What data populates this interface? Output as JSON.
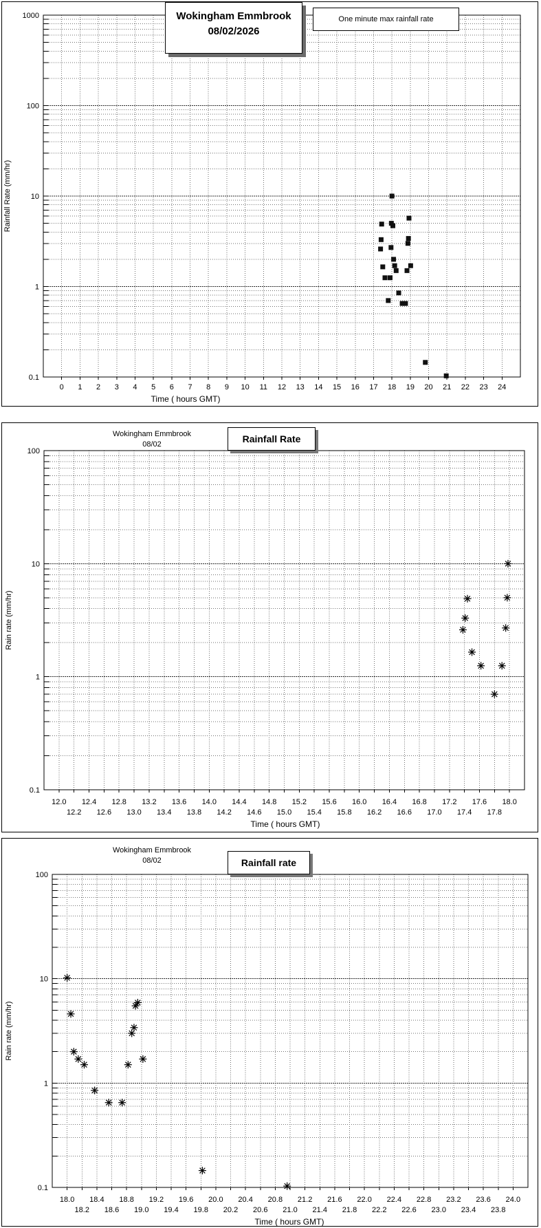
{
  "page": {
    "background": "#ffffff",
    "grid_color_minor": "#6e6e6e",
    "grid_color_major": "#2a2a2a",
    "marker_color": "#111111"
  },
  "chart_data": [
    {
      "type": "scatter",
      "header": {
        "line1": "Wokingham Emmbrook",
        "line2": "08/02/2026"
      },
      "legend": "One minute max rainfall rate",
      "marker": "square",
      "y_axis": {
        "title": "Rainfall Rate (mm/hr)",
        "scale": "log",
        "min": 0.1,
        "max": 1000,
        "tick_values": [
          1000,
          100,
          10,
          1,
          0.1
        ],
        "tick_labels": [
          "1000",
          "100",
          "10",
          "1",
          "0.1"
        ]
      },
      "x_axis": {
        "title": "Time ( hours GMT)",
        "min": -1,
        "max": 25,
        "grid_start": 0,
        "grid_step": 1,
        "grid_end": 24
      },
      "x_ticks": {
        "rows": [
          {
            "start": 0,
            "step": 1,
            "labels": [
              "0",
              "1",
              "2",
              "3",
              "4",
              "5",
              "6",
              "7",
              "8",
              "9",
              "10",
              "11",
              "12",
              "13",
              "14",
              "15",
              "16",
              "17",
              "18",
              "19",
              "20",
              "21",
              "22",
              "23",
              "24"
            ]
          }
        ]
      },
      "points": [
        [
          17.38,
          2.6
        ],
        [
          17.41,
          3.3
        ],
        [
          17.44,
          4.9
        ],
        [
          17.5,
          1.65
        ],
        [
          17.62,
          1.25
        ],
        [
          17.8,
          0.7
        ],
        [
          17.9,
          1.25
        ],
        [
          17.95,
          2.7
        ],
        [
          17.97,
          5.0
        ],
        [
          18.0,
          10.0
        ],
        [
          18.05,
          4.7
        ],
        [
          18.09,
          2.0
        ],
        [
          18.15,
          1.7
        ],
        [
          18.23,
          1.5
        ],
        [
          18.37,
          0.85
        ],
        [
          18.56,
          0.65
        ],
        [
          18.74,
          0.65
        ],
        [
          18.82,
          1.5
        ],
        [
          18.87,
          3.0
        ],
        [
          18.9,
          3.4
        ],
        [
          18.93,
          5.7
        ],
        [
          19.02,
          1.7
        ],
        [
          19.82,
          0.145
        ],
        [
          20.96,
          0.103
        ]
      ]
    },
    {
      "type": "scatter",
      "header": {
        "line1": "Wokingham Emmbrook",
        "line2": "08/02"
      },
      "boxed_title": "Rainfall Rate",
      "marker": "asterisk",
      "y_axis": {
        "title": "Rain rate (mm/hr)",
        "scale": "log",
        "min": 0.1,
        "max": 100,
        "tick_values": [
          100,
          10,
          1,
          0.1
        ],
        "tick_labels": [
          "100",
          "10",
          "1",
          "0.1"
        ]
      },
      "x_axis": {
        "title": "Time ( hours GMT)",
        "min": 11.8,
        "max": 18.2,
        "grid_start": 12.0,
        "grid_step": 0.2,
        "grid_end": 18.0
      },
      "x_ticks": {
        "rows": [
          {
            "start": 12.0,
            "step": 0.4,
            "labels": [
              "12.0",
              "12.4",
              "12.8",
              "13.2",
              "13.6",
              "14.0",
              "14.4",
              "14.8",
              "15.2",
              "15.6",
              "16.0",
              "16.4",
              "16.8",
              "17.2",
              "17.6",
              "18.0"
            ]
          },
          {
            "start": 12.2,
            "step": 0.4,
            "labels": [
              "12.2",
              "12.6",
              "13.0",
              "13.4",
              "13.8",
              "14.2",
              "14.6",
              "15.0",
              "15.4",
              "15.8",
              "16.2",
              "16.6",
              "17.0",
              "17.4",
              "17.8"
            ]
          }
        ]
      },
      "points": [
        [
          17.38,
          2.6
        ],
        [
          17.41,
          3.3
        ],
        [
          17.44,
          4.9
        ],
        [
          17.5,
          1.65
        ],
        [
          17.62,
          1.25
        ],
        [
          17.8,
          0.7
        ],
        [
          17.9,
          1.25
        ],
        [
          17.95,
          2.7
        ],
        [
          17.97,
          5.0
        ],
        [
          17.98,
          10.0
        ]
      ]
    },
    {
      "type": "scatter",
      "header": {
        "line1": "Wokingham Emmbrook",
        "line2": "08/02"
      },
      "boxed_title": "Rainfall rate",
      "marker": "asterisk",
      "y_axis": {
        "title": "Rain rate (mm/hr)",
        "scale": "log",
        "min": 0.1,
        "max": 100,
        "tick_values": [
          100,
          10,
          1,
          0.1
        ],
        "tick_labels": [
          "100",
          "10",
          "1",
          "0.1"
        ]
      },
      "x_axis": {
        "title": "Time ( hours GMT)",
        "min": 17.8,
        "max": 24.2,
        "grid_start": 18.0,
        "grid_step": 0.2,
        "grid_end": 24.0
      },
      "x_ticks": {
        "rows": [
          {
            "start": 18.0,
            "step": 0.4,
            "labels": [
              "18.0",
              "18.4",
              "18.8",
              "19.2",
              "19.6",
              "20.0",
              "20.4",
              "20.8",
              "21.2",
              "21.6",
              "22.0",
              "22.4",
              "22.8",
              "23.2",
              "23.6",
              "24.0"
            ]
          },
          {
            "start": 18.2,
            "step": 0.4,
            "labels": [
              "18.2",
              "18.6",
              "19.0",
              "19.4",
              "19.8",
              "20.2",
              "20.6",
              "21.0",
              "21.4",
              "21.8",
              "22.2",
              "22.6",
              "23.0",
              "23.4",
              "23.8"
            ]
          }
        ]
      },
      "points": [
        [
          18.0,
          10.2
        ],
        [
          18.05,
          4.6
        ],
        [
          18.09,
          2.0
        ],
        [
          18.15,
          1.7
        ],
        [
          18.23,
          1.5
        ],
        [
          18.37,
          0.85
        ],
        [
          18.56,
          0.65
        ],
        [
          18.74,
          0.65
        ],
        [
          18.82,
          1.5
        ],
        [
          18.87,
          3.0
        ],
        [
          18.9,
          3.4
        ],
        [
          18.92,
          5.5
        ],
        [
          18.95,
          5.9
        ],
        [
          19.02,
          1.7
        ],
        [
          19.82,
          0.145
        ],
        [
          20.96,
          0.103
        ]
      ]
    }
  ]
}
